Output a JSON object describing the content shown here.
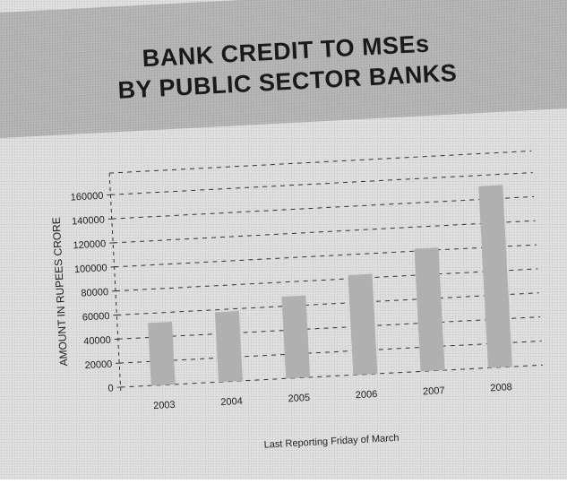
{
  "title_lines": [
    "BANK CREDIT TO MSEs",
    "BY PUBLIC SECTOR BANKS"
  ],
  "chart_data": {
    "type": "bar",
    "title": "BANK CREDIT TO MSEs BY PUBLIC SECTOR BANKS",
    "xlabel": "Last Reporting Friday of March",
    "ylabel": "AMOUNT IN RUPEES CRORE",
    "categories": [
      "2003",
      "2004",
      "2005",
      "2006",
      "2007",
      "2008"
    ],
    "values": [
      52000,
      58000,
      68000,
      83000,
      102000,
      151000
    ],
    "ylim": [
      0,
      160000
    ],
    "yticks": [
      0,
      20000,
      40000,
      60000,
      80000,
      100000,
      120000,
      140000,
      160000
    ],
    "ytick_labels": [
      "0",
      "20000",
      "40000",
      "60000",
      "80000",
      "100000",
      "120000",
      "140000",
      "160000"
    ],
    "grid": true,
    "grid_style": "dashed",
    "bar_color": "#b0b0b0"
  }
}
